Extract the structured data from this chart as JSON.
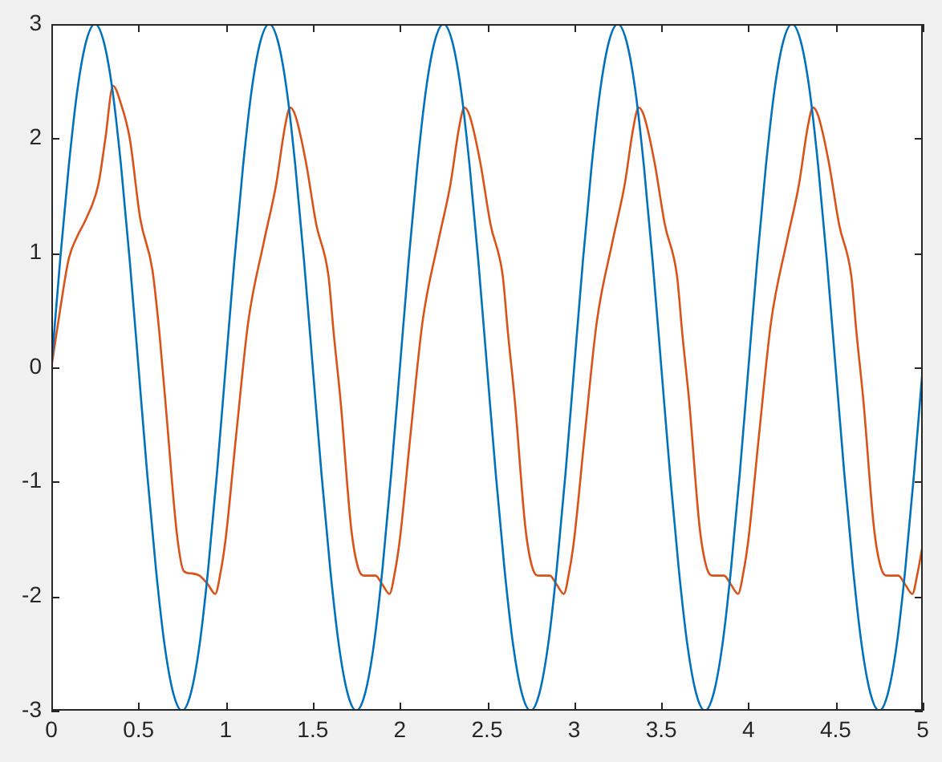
{
  "chart_data": {
    "type": "line",
    "x": [
      0,
      0.05,
      0.1,
      0.15,
      0.2,
      0.25,
      0.3,
      0.35,
      0.4,
      0.45,
      0.5,
      0.55,
      0.6,
      0.65,
      0.7,
      0.75,
      0.8,
      0.85,
      0.9,
      0.95,
      1,
      1.05,
      1.1,
      1.15,
      1.2,
      1.25,
      1.3,
      1.35,
      1.4,
      1.45,
      1.5,
      1.55,
      1.6,
      1.65,
      1.7,
      1.75,
      1.8,
      1.85,
      1.9,
      1.95,
      2,
      2.05,
      2.1,
      2.15,
      2.2,
      2.25,
      2.3,
      2.35,
      2.4,
      2.45,
      2.5,
      2.55,
      2.6,
      2.65,
      2.7,
      2.75,
      2.8,
      2.85,
      2.9,
      2.95,
      3,
      3.05,
      3.1,
      3.15,
      3.2,
      3.25,
      3.3,
      3.35,
      3.4,
      3.45,
      3.5,
      3.55,
      3.6,
      3.65,
      3.7,
      3.75,
      3.8,
      3.85,
      3.9,
      3.95,
      4,
      4.05,
      4.1,
      4.15,
      4.2,
      4.25,
      4.3,
      4.35,
      4.4,
      4.45,
      4.5,
      4.55,
      4.6,
      4.65,
      4.7,
      4.75,
      4.8,
      4.85,
      4.9,
      4.95,
      5
    ],
    "series": [
      {
        "color": "#0072bd",
        "values": [
          0,
          0.93,
          1.76,
          2.43,
          2.85,
          3,
          2.85,
          2.43,
          1.76,
          0.93,
          0,
          -0.93,
          -1.76,
          -2.43,
          -2.85,
          -3,
          -2.85,
          -2.43,
          -1.76,
          -0.93,
          0,
          0.93,
          1.76,
          2.43,
          2.85,
          3,
          2.85,
          2.43,
          1.76,
          0.93,
          0,
          -0.93,
          -1.76,
          -2.43,
          -2.85,
          -3,
          -2.85,
          -2.43,
          -1.76,
          -0.93,
          0,
          0.93,
          1.76,
          2.43,
          2.85,
          3,
          2.85,
          2.43,
          1.76,
          0.93,
          0,
          -0.93,
          -1.76,
          -2.43,
          -2.85,
          -3,
          -2.85,
          -2.43,
          -1.76,
          -0.93,
          0,
          0.93,
          1.76,
          2.43,
          2.85,
          3,
          2.85,
          2.43,
          1.76,
          0.93,
          0,
          -0.93,
          -1.76,
          -2.43,
          -2.85,
          -3,
          -2.85,
          -2.43,
          -1.76,
          -0.93,
          0,
          0.93,
          1.76,
          2.43,
          2.85,
          3,
          2.85,
          2.43,
          1.76,
          0.93,
          0,
          -0.93,
          -1.76,
          -2.43,
          -2.85,
          -3,
          -2.85,
          -2.43,
          -1.76,
          -0.93,
          0
        ]
      },
      {
        "color": "#d95319",
        "x": [
          0,
          0.05,
          0.1,
          0.15,
          0.2,
          0.27,
          0.31,
          0.354,
          0.4,
          0.45,
          0.51,
          0.58,
          0.62,
          0.66,
          0.72,
          0.76,
          0.8,
          0.85,
          0.9,
          0.94,
          0.97,
          1,
          1.06,
          1.13,
          1.22,
          1.29,
          1.34,
          1.37,
          1.4,
          1.46,
          1.52,
          1.59,
          1.62,
          1.66,
          1.72,
          1.76,
          1.8,
          1.86,
          1.9,
          1.94,
          1.97,
          2,
          2.06,
          2.13,
          2.22,
          2.29,
          2.34,
          2.37,
          2.4,
          2.46,
          2.52,
          2.59,
          2.62,
          2.66,
          2.72,
          2.76,
          2.8,
          2.86,
          2.9,
          2.94,
          2.97,
          3,
          3.06,
          3.13,
          3.22,
          3.29,
          3.34,
          3.37,
          3.4,
          3.46,
          3.52,
          3.59,
          3.62,
          3.66,
          3.72,
          3.76,
          3.8,
          3.86,
          3.9,
          3.94,
          3.97,
          4,
          4.06,
          4.13,
          4.22,
          4.29,
          4.34,
          4.37,
          4.4,
          4.46,
          4.52,
          4.59,
          4.62,
          4.66,
          4.72,
          4.76,
          4.8,
          4.86,
          4.9,
          4.94,
          4.97,
          5
        ],
        "values": [
          0,
          0.5,
          0.95,
          1.15,
          1.3,
          1.6,
          2,
          2.46,
          2.3,
          2,
          1.3,
          0.85,
          0.3,
          -0.4,
          -1.45,
          -1.78,
          -1.8,
          -1.82,
          -1.9,
          -1.98,
          -1.8,
          -1.5,
          -0.6,
          0.4,
          1.1,
          1.6,
          2.1,
          2.27,
          2.2,
          1.8,
          1.25,
          0.8,
          0.3,
          -0.3,
          -1.4,
          -1.75,
          -1.82,
          -1.82,
          -1.9,
          -1.98,
          -1.8,
          -1.5,
          -0.6,
          0.4,
          1.1,
          1.6,
          2.1,
          2.27,
          2.2,
          1.8,
          1.25,
          0.8,
          0.3,
          -0.3,
          -1.4,
          -1.75,
          -1.82,
          -1.82,
          -1.9,
          -1.98,
          -1.8,
          -1.5,
          -0.6,
          0.4,
          1.1,
          1.6,
          2.1,
          2.27,
          2.2,
          1.8,
          1.25,
          0.8,
          0.3,
          -0.3,
          -1.4,
          -1.75,
          -1.82,
          -1.82,
          -1.9,
          -1.98,
          -1.8,
          -1.5,
          -0.6,
          0.4,
          1.1,
          1.6,
          2.1,
          2.27,
          2.2,
          1.8,
          1.25,
          0.8,
          0.3,
          -0.3,
          -1.4,
          -1.75,
          -1.82,
          -1.82,
          -1.9,
          -1.98,
          -1.8,
          -1.55
        ]
      }
    ],
    "xlim": [
      0,
      5
    ],
    "xticks": [
      0,
      0.5,
      1,
      1.5,
      2,
      2.5,
      3,
      3.5,
      4,
      4.5,
      5
    ],
    "ylim": [
      -3,
      3
    ],
    "yticks": [
      -3,
      -2,
      -1,
      0,
      1,
      2,
      3
    ],
    "grid": false,
    "legend": false,
    "marker": "none",
    "line_style": "solid"
  }
}
